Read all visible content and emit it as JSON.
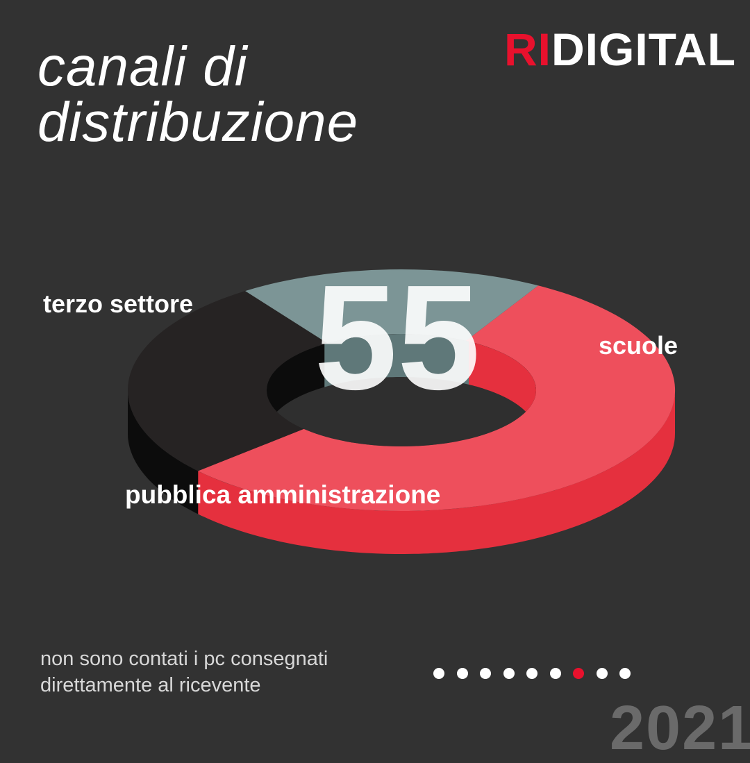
{
  "title": {
    "line1": "canali di",
    "line2": "distribuzione"
  },
  "logo": {
    "prefix": "RI",
    "suffix": "DIGITAL"
  },
  "chart_data": {
    "type": "pie",
    "categories": [
      "scuole",
      "pubblica amministrazione",
      "terzo settore"
    ],
    "values": [
      55,
      27,
      18
    ],
    "colors": [
      "#ee4f5c",
      "#262323",
      "#7c9596"
    ],
    "center_label": "55",
    "legend": "none"
  },
  "footnote": {
    "line1": "non sono contati i pc consegnati",
    "line2": "direttamente al ricevente"
  },
  "pagination": {
    "total": 9,
    "current": 7,
    "dot_color": "#ffffff",
    "active_color": "#e8112d"
  },
  "year": "2021"
}
